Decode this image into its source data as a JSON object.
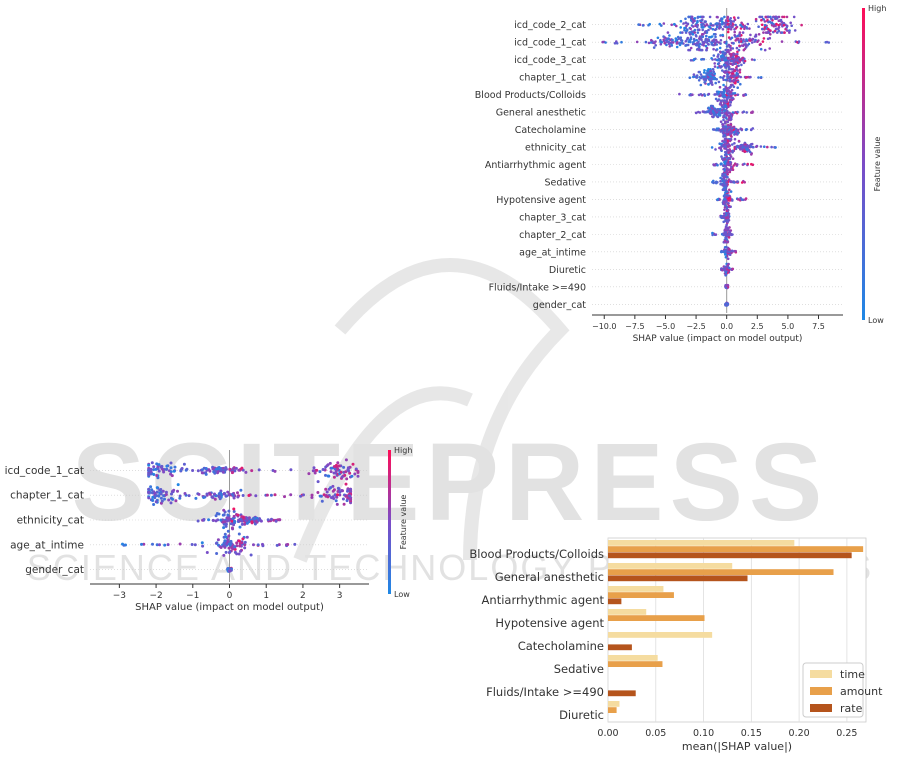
{
  "watermark": {
    "main": "SCITEPRESS",
    "sub": "SCIENCE AND TECHNOLOGY PUBLICATIONS",
    "color": "#d9d9d9"
  },
  "colors": {
    "shap_low": "#1e88e5",
    "shap_high": "#ff0d57",
    "time": "#f5dca0",
    "amount": "#e8a04a",
    "rate": "#b5541c"
  },
  "chart_data": [
    {
      "type": "scatter",
      "subtype": "shap-beeswarm",
      "xlabel": "SHAP value (impact on model output)",
      "xlim": [
        -11,
        9.5
      ],
      "xticks": [
        -10.0,
        -7.5,
        -5.0,
        -2.5,
        0.0,
        2.5,
        5.0,
        7.5
      ],
      "xtick_labels": [
        "−10.0",
        "−7.5",
        "−5.0",
        "−2.5",
        "0.0",
        "2.5",
        "5.0",
        "7.5"
      ],
      "colorbar": {
        "label": "Feature value",
        "high": "High",
        "low": "Low"
      },
      "features": [
        {
          "name": "icd_code_2_cat",
          "min": -7.5,
          "max": 6.5,
          "modes": [
            [
              -2.5,
              8
            ],
            [
              4.0,
              8
            ],
            [
              0.3,
              4
            ]
          ]
        },
        {
          "name": "icd_code_1_cat",
          "min": -10.2,
          "max": 8.8,
          "modes": [
            [
              -1.5,
              7
            ],
            [
              1.5,
              7
            ],
            [
              -4.0,
              3
            ]
          ]
        },
        {
          "name": "icd_code_3_cat",
          "min": -3.0,
          "max": 2.5,
          "modes": [
            [
              -0.3,
              6
            ],
            [
              0.8,
              4
            ]
          ]
        },
        {
          "name": "chapter_1_cat",
          "min": -3.8,
          "max": 3.0,
          "modes": [
            [
              -1.5,
              5
            ],
            [
              0.5,
              6
            ]
          ]
        },
        {
          "name": "Blood Products/Colloids",
          "min": -4.0,
          "max": 1.8,
          "modes": [
            [
              0.0,
              6
            ]
          ]
        },
        {
          "name": "General anesthetic",
          "min": -2.5,
          "max": 2.5,
          "modes": [
            [
              0.0,
              6
            ],
            [
              -1.0,
              3
            ]
          ]
        },
        {
          "name": "Catecholamine",
          "min": -1.2,
          "max": 2.2,
          "modes": [
            [
              -0.1,
              5
            ],
            [
              0.5,
              3
            ]
          ]
        },
        {
          "name": "ethnicity_cat",
          "min": -1.2,
          "max": 4.0,
          "modes": [
            [
              0.0,
              6
            ],
            [
              1.5,
              3
            ]
          ]
        },
        {
          "name": "Antiarrhythmic agent",
          "min": -1.5,
          "max": 2.5,
          "modes": [
            [
              0.0,
              5
            ]
          ]
        },
        {
          "name": "Sedative",
          "min": -1.2,
          "max": 1.5,
          "modes": [
            [
              -0.2,
              5
            ]
          ]
        },
        {
          "name": "Hypotensive agent",
          "min": -0.8,
          "max": 1.6,
          "modes": [
            [
              0.0,
              5
            ]
          ]
        },
        {
          "name": "chapter_3_cat",
          "min": -0.5,
          "max": 0.3,
          "modes": [
            [
              0.0,
              4
            ]
          ]
        },
        {
          "name": "chapter_2_cat",
          "min": -1.2,
          "max": 0.5,
          "modes": [
            [
              0.0,
              4
            ]
          ]
        },
        {
          "name": "age_at_intime",
          "min": -0.5,
          "max": 0.8,
          "modes": [
            [
              0.0,
              3
            ]
          ]
        },
        {
          "name": "Diuretic",
          "min": -0.5,
          "max": 0.5,
          "modes": [
            [
              0.0,
              3
            ]
          ]
        },
        {
          "name": "Fluids/Intake >=490",
          "min": -0.1,
          "max": 0.1,
          "modes": [
            [
              0.0,
              1
            ]
          ]
        },
        {
          "name": "gender_cat",
          "min": -0.1,
          "max": 0.1,
          "modes": [
            [
              0.0,
              1
            ]
          ]
        }
      ]
    },
    {
      "type": "scatter",
      "subtype": "shap-beeswarm",
      "xlabel": "SHAP value (impact on model output)",
      "xlim": [
        -3.8,
        3.8
      ],
      "xticks": [
        -3,
        -2,
        -1,
        0,
        1,
        2,
        3
      ],
      "xtick_labels": [
        "−3",
        "−2",
        "−1",
        "0",
        "1",
        "2",
        "3"
      ],
      "colorbar": {
        "label": "Feature value",
        "high": "High",
        "low": "Low"
      },
      "features": [
        {
          "name": "icd_code_1_cat",
          "min": -2.2,
          "max": 3.5,
          "modes": [
            [
              -2.0,
              5
            ],
            [
              3.0,
              5
            ],
            [
              -0.3,
              2
            ]
          ]
        },
        {
          "name": "chapter_1_cat",
          "min": -2.2,
          "max": 3.3,
          "modes": [
            [
              -1.9,
              5
            ],
            [
              3.0,
              5
            ],
            [
              -0.3,
              2
            ]
          ]
        },
        {
          "name": "ethnicity_cat",
          "min": -1.0,
          "max": 1.6,
          "modes": [
            [
              0.0,
              6
            ],
            [
              0.5,
              2
            ]
          ]
        },
        {
          "name": "age_at_intime",
          "min": -3.2,
          "max": 1.8,
          "modes": [
            [
              0.0,
              5
            ]
          ]
        },
        {
          "name": "gender_cat",
          "min": -0.05,
          "max": 0.05,
          "modes": [
            [
              0.0,
              1
            ]
          ]
        }
      ]
    },
    {
      "type": "bar",
      "orientation": "horizontal",
      "xlabel": "mean(|SHAP value|)",
      "xlim": [
        0,
        0.27
      ],
      "xticks": [
        0.0,
        0.05,
        0.1,
        0.15,
        0.2,
        0.25
      ],
      "xtick_labels": [
        "0.00",
        "0.05",
        "0.10",
        "0.15",
        "0.20",
        "0.25"
      ],
      "grid": true,
      "legend_placement": "bottom-right",
      "categories": [
        "Blood Products/Colloids",
        "General anesthetic",
        "Antiarrhythmic agent",
        "Hypotensive agent",
        "Catecholamine",
        "Sedative",
        "Fluids/Intake >=490",
        "Diuretic"
      ],
      "series": [
        {
          "name": "time",
          "values": [
            0.195,
            0.13,
            0.058,
            0.04,
            0.109,
            0.052,
            0.0,
            0.012
          ]
        },
        {
          "name": "amount",
          "values": [
            0.267,
            0.236,
            0.069,
            0.101,
            0.0,
            0.057,
            0.0,
            0.009
          ]
        },
        {
          "name": "rate",
          "values": [
            0.255,
            0.146,
            0.014,
            0.0,
            0.025,
            0.0,
            0.029,
            0.0
          ]
        }
      ]
    }
  ]
}
